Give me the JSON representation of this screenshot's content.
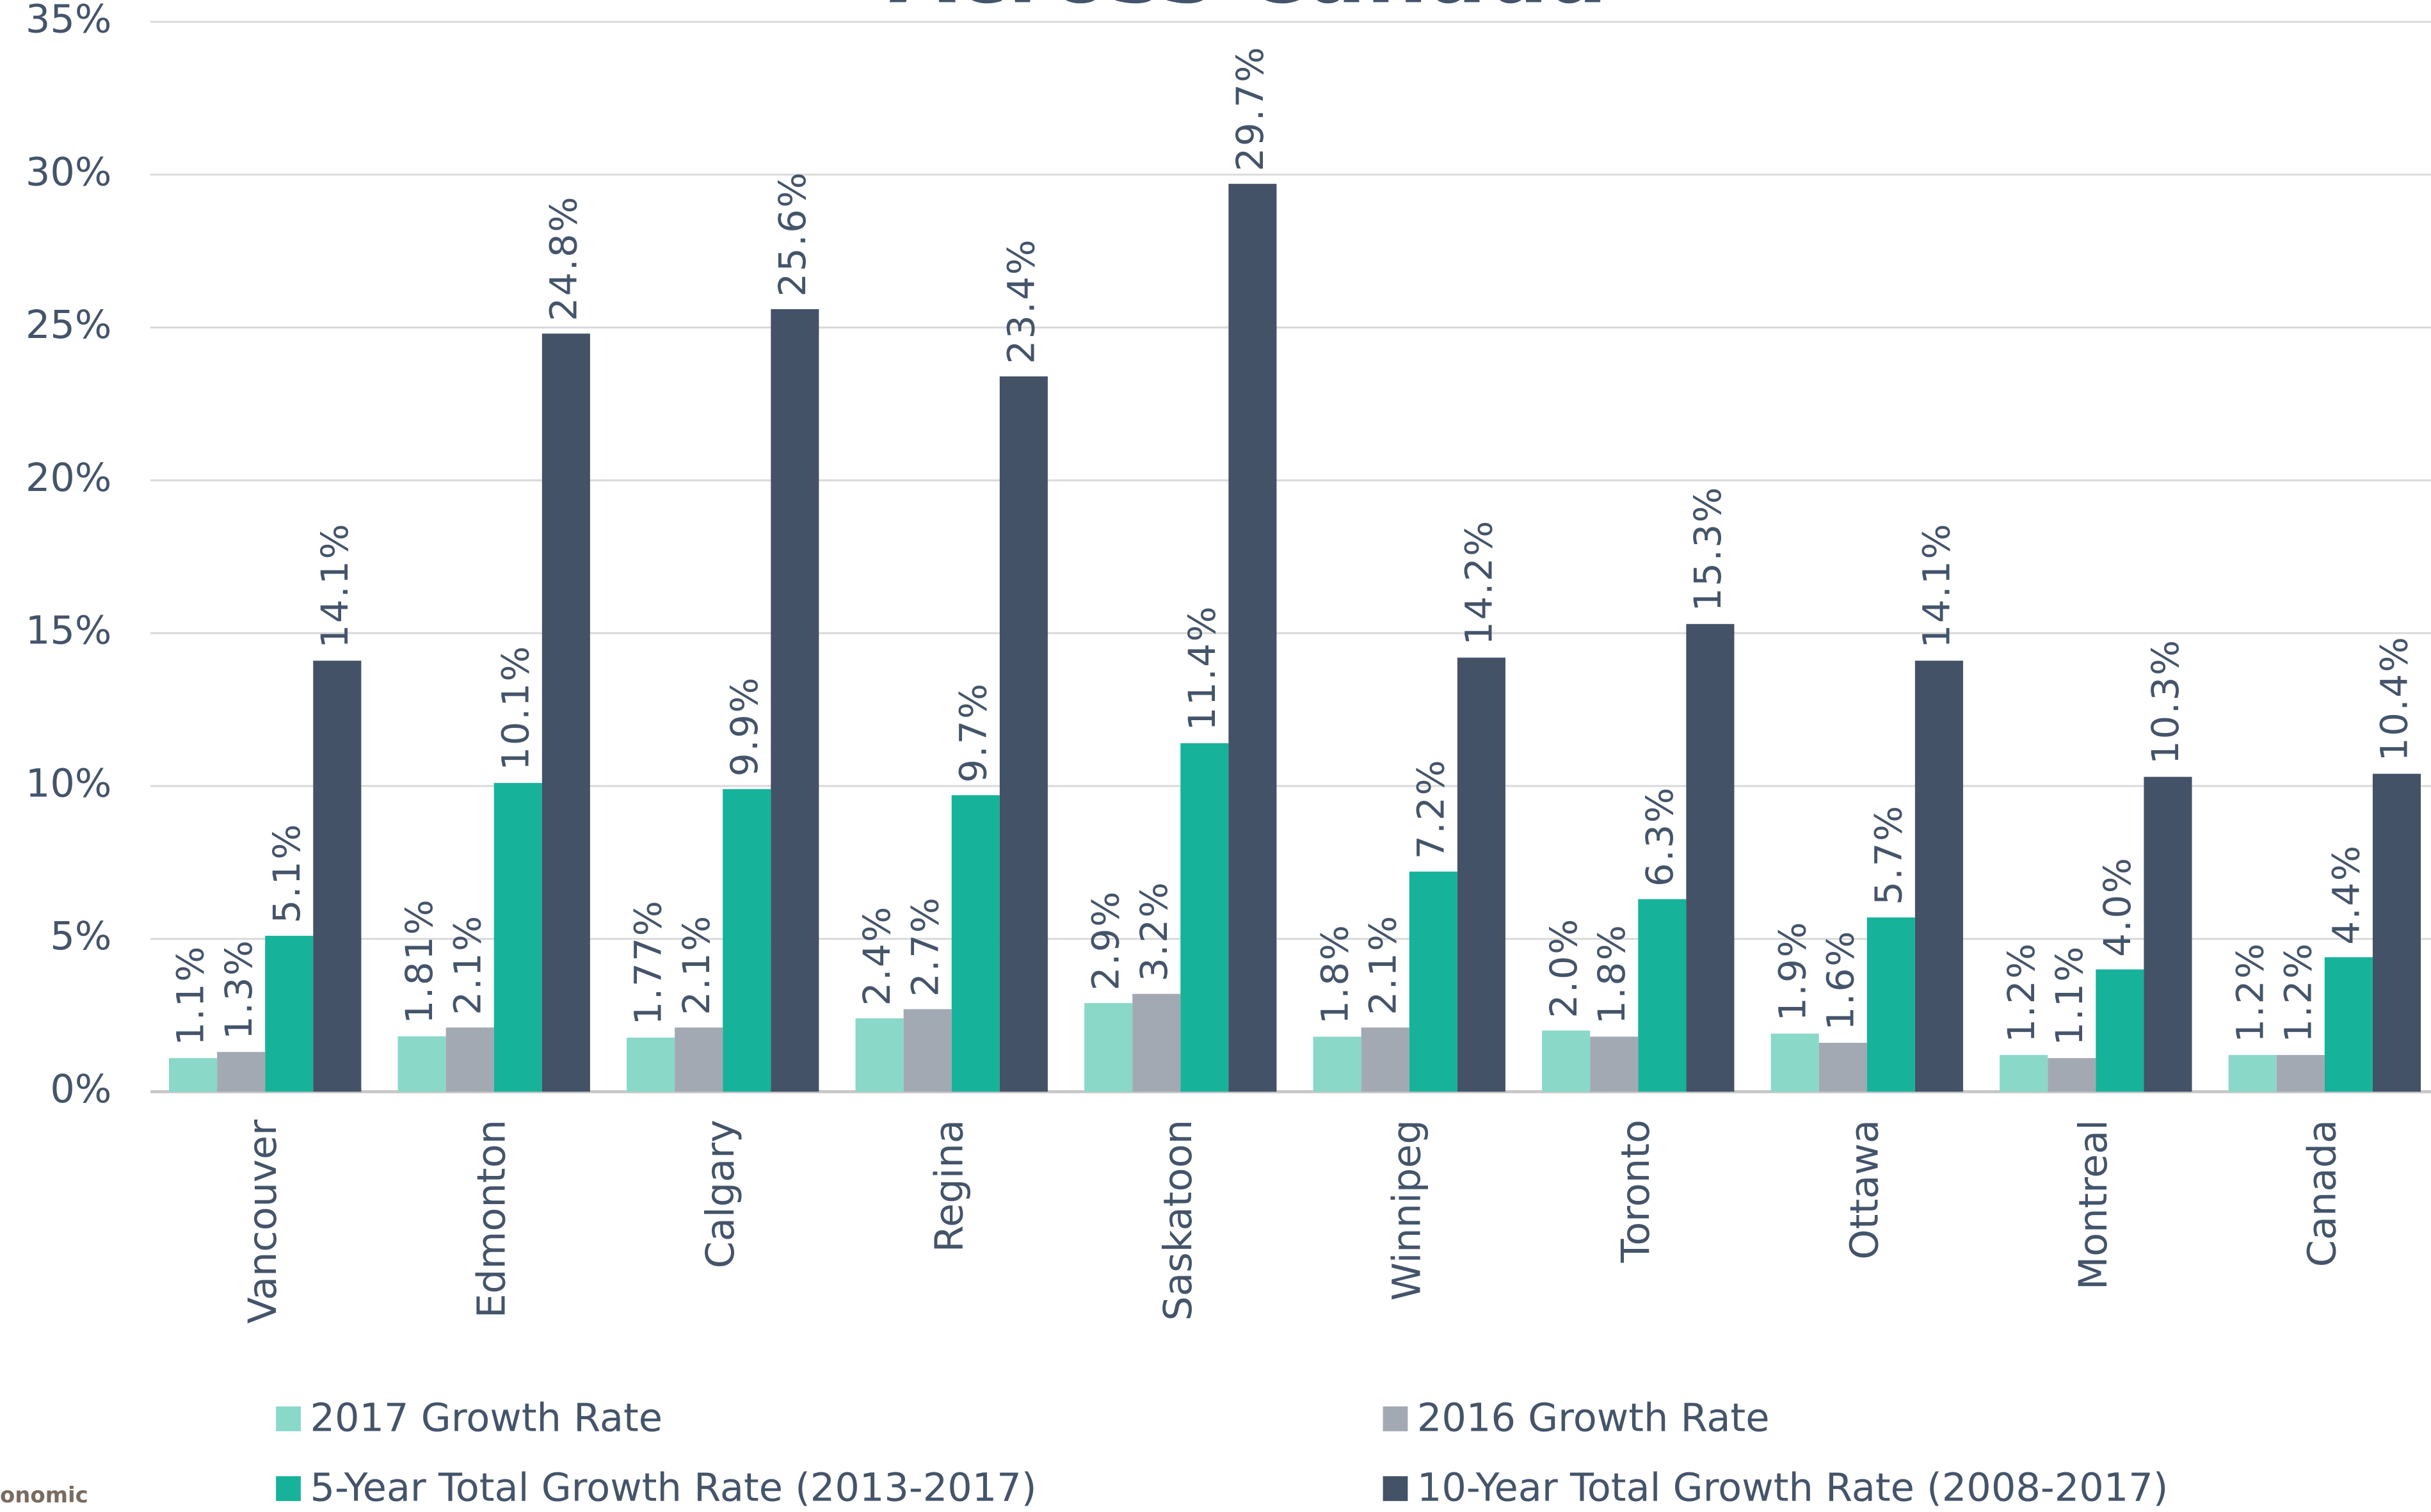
{
  "chart_data": {
    "type": "bar",
    "title": "Across Canada",
    "footnote": "onomic",
    "categories": [
      "Vancouver",
      "Edmonton",
      "Calgary",
      "Regina",
      "Saskatoon",
      "Winnipeg",
      "Toronto",
      "Ottawa",
      "Montreal",
      "Canada"
    ],
    "series": [
      {
        "name": "2017 Growth Rate",
        "color": "#8ad8c8",
        "values": [
          1.1,
          1.81,
          1.77,
          2.4,
          2.9,
          1.8,
          2.0,
          1.9,
          1.2,
          1.2
        ],
        "value_labels": [
          "1.1%",
          "1.81%",
          "1.77%",
          "2.4%",
          "2.9%",
          "1.8%",
          "2.0%",
          "1.9%",
          "1.2%",
          "1.2%"
        ]
      },
      {
        "name": "2016 Growth Rate",
        "color": "#a3a9b3",
        "values": [
          1.3,
          2.1,
          2.1,
          2.7,
          3.2,
          2.1,
          1.8,
          1.6,
          1.1,
          1.2
        ],
        "value_labels": [
          "1.3%",
          "2.1%",
          "2.1%",
          "2.7%",
          "3.2%",
          "2.1%",
          "1.8%",
          "1.6%",
          "1.1%",
          "1.2%"
        ]
      },
      {
        "name": "5-Year Total Growth Rate (2013-2017)",
        "color": "#17b29a",
        "values": [
          5.1,
          10.1,
          9.9,
          9.7,
          11.4,
          7.2,
          6.3,
          5.7,
          4.0,
          4.4
        ],
        "value_labels": [
          "5.1%",
          "10.1%",
          "9.9%",
          "9.7%",
          "11.4%",
          "7.2%",
          "6.3%",
          "5.7%",
          "4.0%",
          "4.4%"
        ]
      },
      {
        "name": "10-Year Total Growth Rate (2008-2017)",
        "color": "#435266",
        "values": [
          14.1,
          24.8,
          25.6,
          23.4,
          29.7,
          14.2,
          15.3,
          14.1,
          10.3,
          10.4
        ],
        "value_labels": [
          "14.1%",
          "24.8%",
          "25.6%",
          "23.4%",
          "29.7%",
          "14.2%",
          "15.3%",
          "14.1%",
          "10.3%",
          "10.4%"
        ]
      }
    ],
    "ylim": [
      0,
      35
    ],
    "yticks": [
      {
        "value": 0,
        "label": "0%"
      },
      {
        "value": 5,
        "label": "5%"
      },
      {
        "value": 10,
        "label": "10%"
      },
      {
        "value": 15,
        "label": "15%"
      },
      {
        "value": 20,
        "label": "20%"
      },
      {
        "value": 25,
        "label": "25%"
      },
      {
        "value": 30,
        "label": "30%"
      },
      {
        "value": 35,
        "label": "35%"
      }
    ],
    "grid": true
  }
}
